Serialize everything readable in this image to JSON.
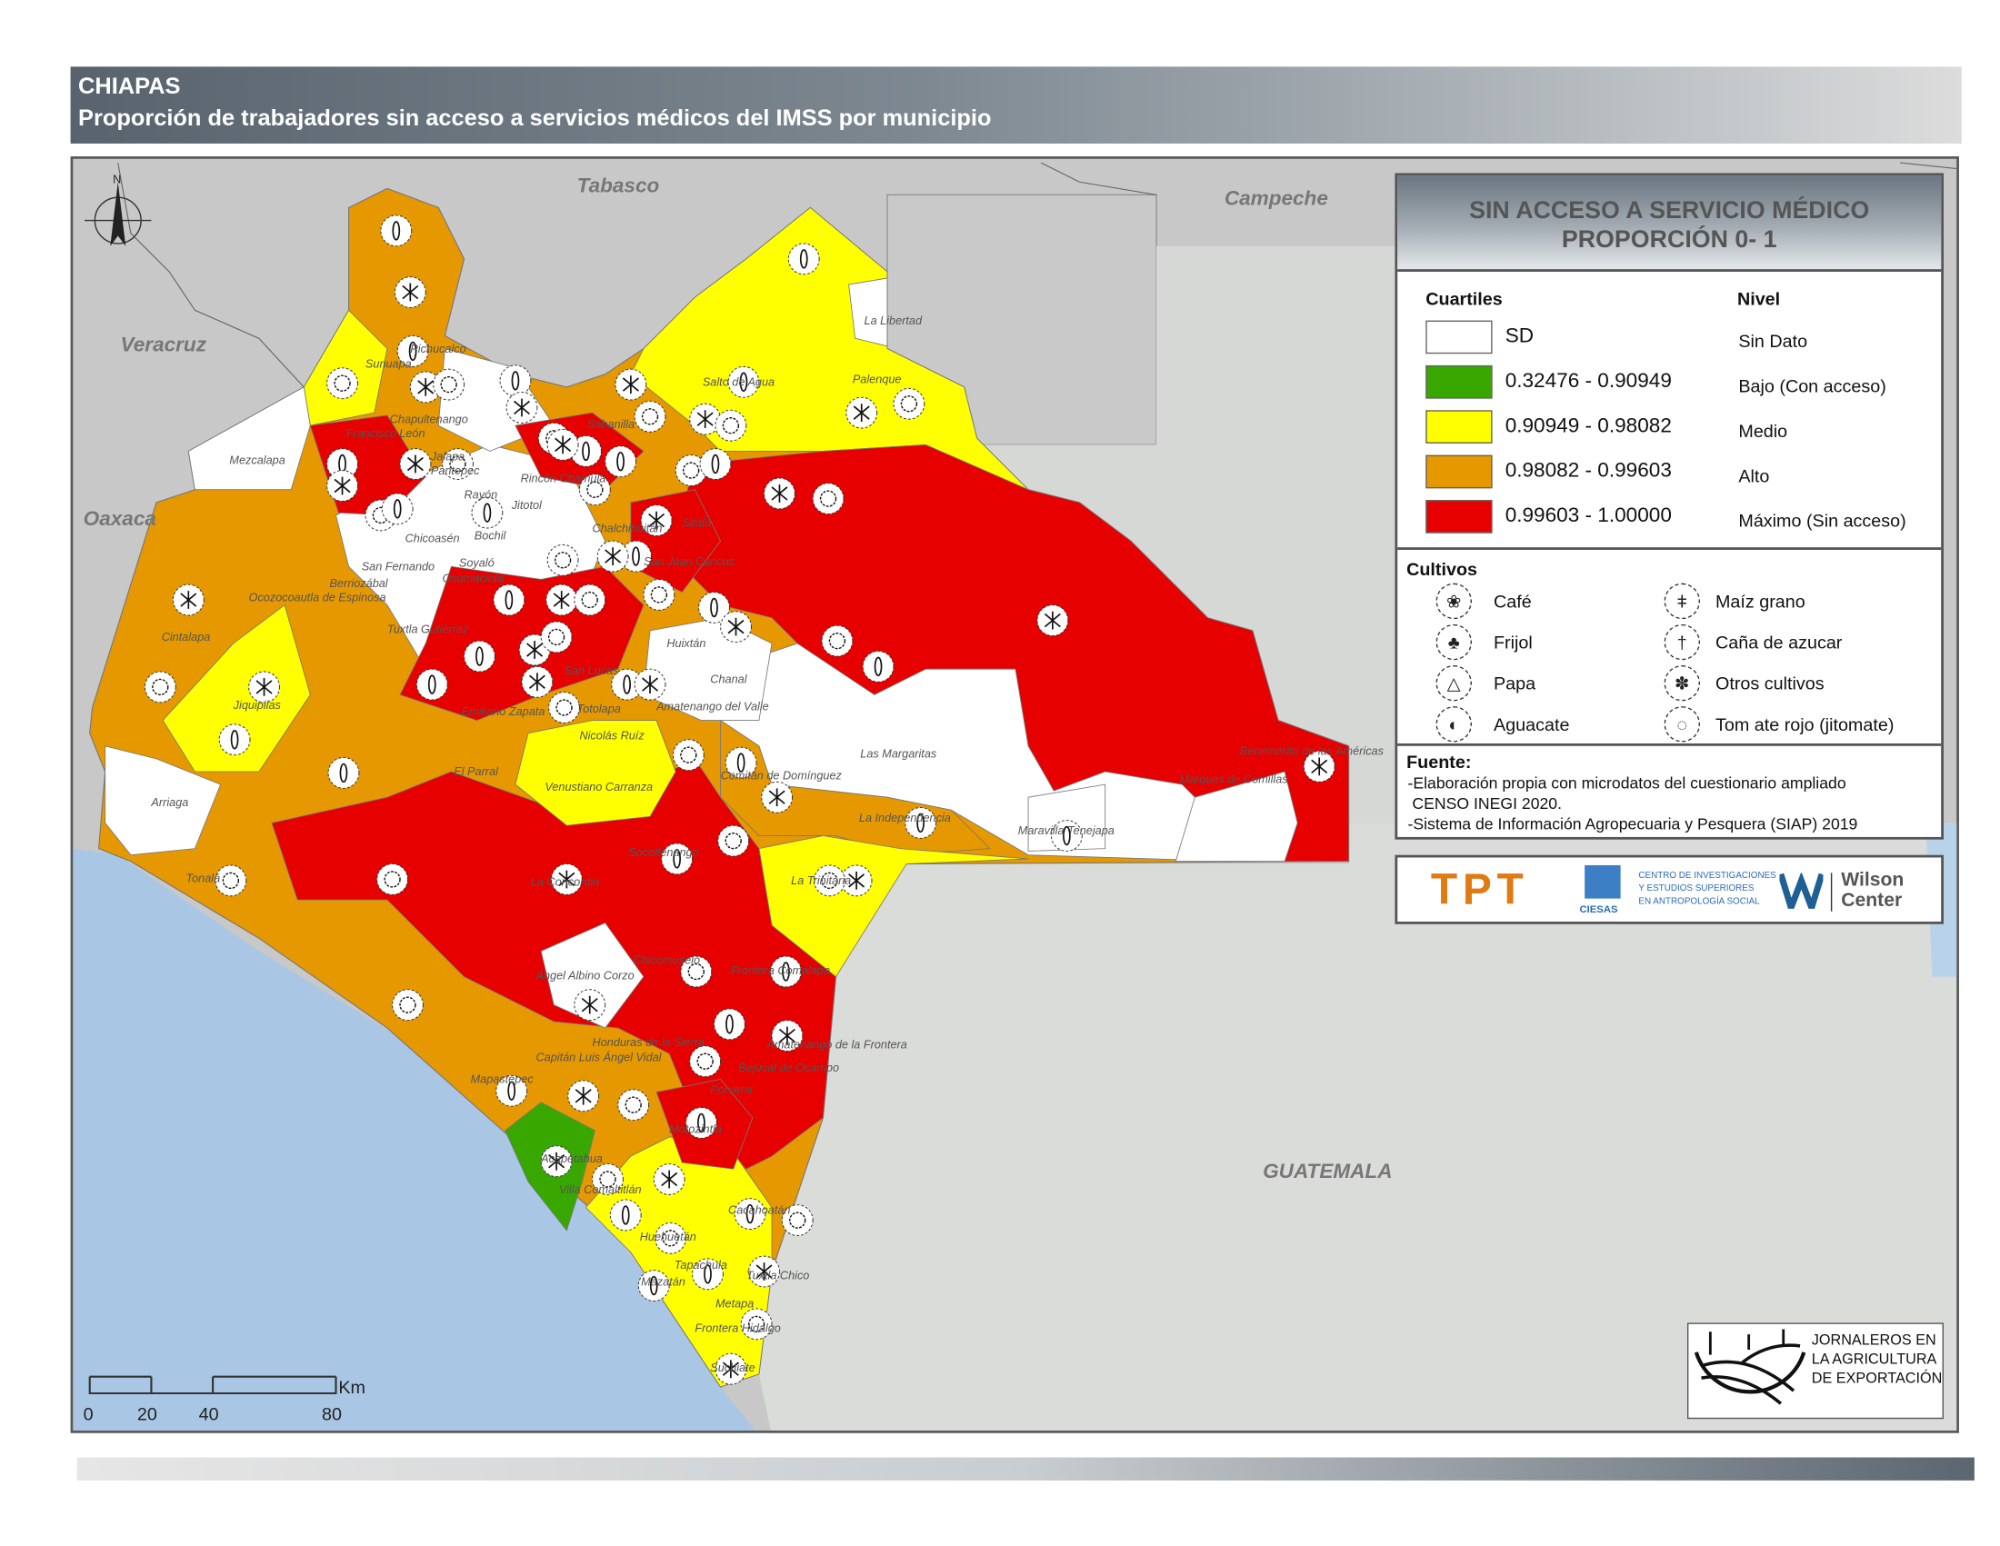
{
  "header": {
    "state": "CHIAPAS",
    "subtitle": "Proporción de trabajadores sin acceso a servicios médicos del IMSS por municipio"
  },
  "neighbors": {
    "tabasco": "Tabasco",
    "campeche": "Campeche",
    "veracruz": "Veracruz",
    "oaxaca": "Oaxaca",
    "guatemala": "GUATEMALA"
  },
  "legend": {
    "title_line1": "SIN ACCESO A SERVICIO MÉDICO",
    "title_line2": "PROPORCIÓN 0- 1",
    "quartiles_header": "Cuartiles",
    "level_header": "Nivel",
    "classes": [
      {
        "range": "SD",
        "level": "Sin Dato",
        "color": "#ffffff"
      },
      {
        "range": "0.32476 - 0.90949",
        "level": "Bajo (Con acceso)",
        "color": "#38a800"
      },
      {
        "range": "0.90949 - 0.98082",
        "level": "Medio",
        "color": "#ffff00"
      },
      {
        "range": "0.98082 - 0.99603",
        "level": "Alto",
        "color": "#e69800"
      },
      {
        "range": "0.99603 - 1.00000",
        "level": "Máximo (Sin acceso)",
        "color": "#e60000"
      }
    ],
    "crops_header": "Cultivos",
    "crops": [
      {
        "label": "Café",
        "icon": "coffee-icon"
      },
      {
        "label": "Frijol",
        "icon": "bean-icon"
      },
      {
        "label": "Papa",
        "icon": "potato-icon"
      },
      {
        "label": "Aguacate",
        "icon": "avocado-icon"
      },
      {
        "label": "Maíz grano",
        "icon": "corn-icon"
      },
      {
        "label": "Caña de azucar",
        "icon": "sugarcane-icon"
      },
      {
        "label": "Otros cultivos",
        "icon": "other-crops-icon"
      },
      {
        "label": "Tom ate rojo (jitomate)",
        "icon": "tomato-icon"
      }
    ],
    "source_header": "Fuente:",
    "source_lines": [
      "-Elaboración propia con microdatos del cuestionario ampliado",
      " CENSO INEGI 2020.",
      "-Sistema de Información Agropecuaria y Pesquera (SIAP) 2019"
    ]
  },
  "logos": {
    "tpt": "TPT",
    "ciesas_lines": [
      "CENTRO DE INVESTIGACIONES",
      "Y ESTUDIOS SUPERIORES",
      "EN ANTROPOLOGÍA SOCIAL"
    ],
    "ciesas_acronym": "CIESAS",
    "wilson_1": "Wilson",
    "wilson_2": "Center",
    "jornaleros_lines": [
      "JORNALEROS EN",
      "LA AGRICULTURA",
      "DE EXPORTACIÓN"
    ]
  },
  "scale": {
    "ticks": [
      "0",
      "20",
      "40",
      "80"
    ],
    "unit": "Km"
  },
  "north": "N",
  "municipalities": [
    "Mezcalapa",
    "Cintalapa",
    "Jiquipilas",
    "Arriaga",
    "Tonalá",
    "Ocozocoautla de Espinosa",
    "Berriozábal",
    "San Fernando",
    "Chicoasén",
    "Bochil",
    "Jitotol",
    "Soyaló",
    "Osumacinta",
    "Tuxtla Gutiérrez",
    "Chapultenango",
    "Francisco León",
    "Sunuapa",
    "Pichucalco",
    "Sabanilla",
    "Salto de Agua",
    "Palenque",
    "La Libertad",
    "Sitalá",
    "San Juan Cancuc",
    "Huixtán",
    "Chanal",
    "Amatenango del Valle",
    "Totolapa",
    "Nicolás Ruíz",
    "Venustiano Carranza",
    "El Parral",
    "Las Margaritas",
    "Comitán de Domínguez",
    "La Independencia",
    "La Trinitaria",
    "La Concordia",
    "Ángel Albino Corzo",
    "Chicomuselo",
    "Frontera Comalapa",
    "Honduras de la Sierra",
    "Capitán Luis Ángel Vidal",
    "Frontera Hidalgo",
    "Huehuetán",
    "Tapachula",
    "Mapastepec",
    "Acapetahua",
    "Villa Comaltitlán",
    "Benemérito de las Américas",
    "Marqués de Comillas",
    "Maravilla Tenejapa",
    "Jalapa",
    "Pantepec",
    "Rayón",
    "Rincón Chamula",
    "Chalchihuitán",
    "San Lucas",
    "Emiliano Zapata",
    "Socoltenango",
    "Motozintla",
    "Porvenir",
    "Bejucal de Ocampo",
    "Amatenango de la Frontera",
    "Cacahoatán",
    "Metapa",
    "Suchiate",
    "Mazatán",
    "Tuxtla Chico"
  ]
}
